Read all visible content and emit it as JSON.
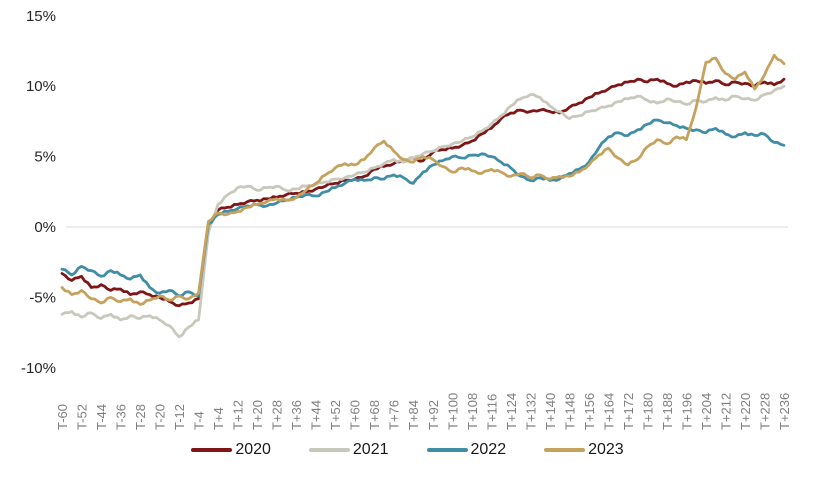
{
  "chart_data": {
    "type": "line",
    "title": "",
    "xlabel": "",
    "ylabel": "",
    "background": "#FFFFFF",
    "legend_position": "bottom",
    "grid": "horizontal zero-line only",
    "zero_line_color": "#D9D9D9",
    "ylim": [
      -10,
      15
    ],
    "xlim": [
      -60,
      236
    ],
    "y_ticks": [
      {
        "value": 15,
        "label": "15%"
      },
      {
        "value": 10,
        "label": "10%"
      },
      {
        "value": 5,
        "label": "5%"
      },
      {
        "value": 0,
        "label": "0%"
      },
      {
        "value": -5,
        "label": "-5%"
      },
      {
        "value": -10,
        "label": "-10%"
      }
    ],
    "x_tick_values": [
      -60,
      -52,
      -44,
      -36,
      -28,
      -20,
      -12,
      -4,
      4,
      12,
      20,
      28,
      36,
      44,
      52,
      60,
      68,
      76,
      84,
      92,
      100,
      108,
      116,
      124,
      132,
      140,
      148,
      156,
      164,
      172,
      180,
      188,
      196,
      204,
      212,
      220,
      228,
      236
    ],
    "x_tick_labels": [
      "T-60",
      "T-52",
      "T-44",
      "T-36",
      "T-28",
      "T-20",
      "T-12",
      "T-4",
      "T+4",
      "T+12",
      "T+20",
      "T+28",
      "T+36",
      "T+44",
      "T+52",
      "T+60",
      "T+68",
      "T+76",
      "T+84",
      "T+92",
      "T+100",
      "T+108",
      "T+116",
      "T+124",
      "T+132",
      "T+140",
      "T+148",
      "T+156",
      "T+164",
      "T+172",
      "T+180",
      "T+188",
      "T+196",
      "T+204",
      "T+212",
      "T+220",
      "T+228",
      "T+236"
    ],
    "x_values": [
      -60,
      -56,
      -52,
      -48,
      -44,
      -40,
      -36,
      -32,
      -28,
      -24,
      -20,
      -16,
      -12,
      -8,
      -4,
      0,
      4,
      8,
      12,
      16,
      20,
      24,
      28,
      32,
      36,
      40,
      44,
      48,
      52,
      56,
      60,
      64,
      68,
      72,
      76,
      80,
      84,
      88,
      92,
      96,
      100,
      104,
      108,
      112,
      116,
      120,
      124,
      128,
      132,
      136,
      140,
      144,
      148,
      152,
      156,
      160,
      164,
      168,
      172,
      176,
      180,
      184,
      188,
      192,
      196,
      200,
      204,
      208,
      212,
      216,
      220,
      224,
      228,
      232,
      236
    ],
    "series": [
      {
        "name": "2020",
        "color": "#7E1516",
        "values": [
          -3.3,
          -3.8,
          -3.5,
          -4.3,
          -4.1,
          -4.5,
          -4.4,
          -4.8,
          -4.6,
          -4.8,
          -5.0,
          -5.3,
          -5.6,
          -5.4,
          -5.1,
          0.1,
          1.2,
          1.4,
          1.6,
          1.8,
          1.9,
          2.0,
          2.1,
          2.3,
          2.4,
          2.5,
          2.7,
          2.9,
          3.1,
          3.3,
          3.4,
          3.6,
          4.1,
          4.3,
          4.5,
          4.7,
          4.9,
          4.7,
          5.3,
          5.5,
          5.6,
          5.8,
          6.1,
          6.6,
          7.0,
          7.7,
          8.1,
          8.3,
          8.2,
          8.3,
          8.2,
          8.1,
          8.5,
          8.8,
          9.2,
          9.5,
          9.8,
          10.1,
          10.3,
          10.5,
          10.3,
          10.5,
          10.2,
          10.0,
          10.3,
          10.4,
          10.2,
          10.4,
          10.1,
          10.3,
          10.2,
          10.0,
          10.3,
          10.1,
          10.5
        ]
      },
      {
        "name": "2021",
        "color": "#C8C8BC",
        "values": [
          -6.2,
          -6.0,
          -6.4,
          -6.1,
          -6.5,
          -6.2,
          -6.6,
          -6.3,
          -6.5,
          -6.3,
          -6.6,
          -7.0,
          -7.8,
          -7.1,
          -6.6,
          -0.4,
          1.6,
          2.3,
          2.8,
          2.9,
          2.6,
          2.8,
          2.9,
          2.6,
          2.7,
          2.9,
          3.0,
          3.2,
          3.4,
          3.5,
          3.7,
          3.9,
          4.2,
          4.5,
          4.8,
          4.6,
          4.9,
          5.2,
          5.4,
          5.7,
          5.9,
          6.1,
          6.4,
          6.8,
          7.3,
          7.9,
          8.6,
          9.1,
          9.4,
          9.2,
          8.6,
          8.2,
          7.7,
          7.9,
          8.2,
          8.4,
          8.6,
          8.9,
          9.1,
          9.3,
          9.0,
          8.8,
          9.1,
          8.9,
          8.7,
          9.0,
          8.9,
          9.2,
          9.0,
          9.3,
          9.1,
          9.0,
          9.4,
          9.7,
          10.0
        ]
      },
      {
        "name": "2022",
        "color": "#3F8DA6",
        "values": [
          -3.0,
          -3.4,
          -2.8,
          -3.1,
          -3.5,
          -3.1,
          -3.4,
          -3.7,
          -3.4,
          -4.3,
          -4.7,
          -4.5,
          -4.9,
          -4.6,
          -4.9,
          0.2,
          0.9,
          1.1,
          1.3,
          1.5,
          1.6,
          1.5,
          1.7,
          1.9,
          2.1,
          2.3,
          2.2,
          2.5,
          2.8,
          3.1,
          3.4,
          3.3,
          3.5,
          3.4,
          3.7,
          3.5,
          3.1,
          3.9,
          4.4,
          4.7,
          5.0,
          4.9,
          5.1,
          5.2,
          5.0,
          4.6,
          4.2,
          3.6,
          3.3,
          3.5,
          3.3,
          3.4,
          3.8,
          4.1,
          4.6,
          5.6,
          6.4,
          6.7,
          6.5,
          6.9,
          7.3,
          7.6,
          7.4,
          7.2,
          7.0,
          6.9,
          6.7,
          7.0,
          6.6,
          6.4,
          6.7,
          6.5,
          6.6,
          6.0,
          5.8
        ]
      },
      {
        "name": "2023",
        "color": "#C5A25E",
        "values": [
          -4.3,
          -4.8,
          -4.5,
          -5.1,
          -5.4,
          -5.0,
          -5.3,
          -5.1,
          -5.5,
          -5.2,
          -4.9,
          -5.2,
          -4.9,
          -5.1,
          -4.7,
          0.4,
          1.0,
          0.9,
          1.1,
          1.4,
          1.6,
          1.8,
          2.0,
          1.9,
          2.1,
          2.6,
          3.1,
          3.7,
          4.2,
          4.5,
          4.4,
          4.8,
          5.6,
          6.1,
          5.4,
          4.8,
          4.6,
          5.0,
          4.8,
          4.3,
          3.9,
          4.2,
          4.0,
          3.8,
          4.1,
          3.9,
          3.6,
          3.8,
          3.5,
          3.7,
          3.4,
          3.6,
          3.6,
          3.9,
          4.4,
          5.1,
          5.6,
          4.9,
          4.4,
          4.8,
          5.7,
          6.2,
          5.9,
          6.4,
          6.2,
          8.5,
          11.7,
          12.0,
          10.9,
          10.5,
          11.0,
          9.8,
          10.8,
          12.2,
          11.6
        ]
      }
    ]
  }
}
